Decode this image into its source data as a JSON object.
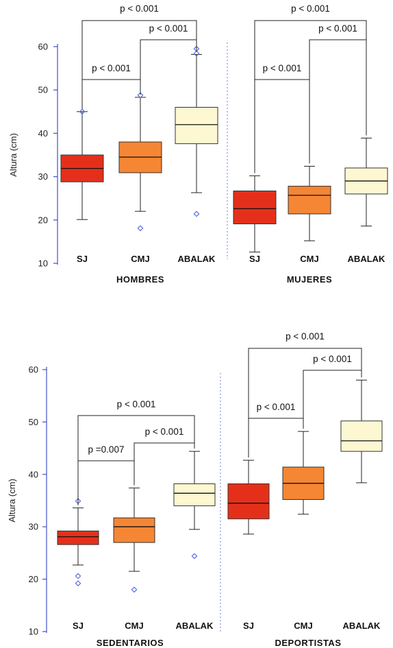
{
  "colors": {
    "SJ": "#e4301b",
    "CMJ": "#f58634",
    "ABALAK": "#fdf8d2",
    "outlier": "#5b6fe0",
    "axis": "#3f50c8",
    "separator": "#6b7fd8"
  },
  "chart_data": [
    {
      "type": "boxplot",
      "ylabel": "Altura (cm)",
      "ylim": [
        10,
        60
      ],
      "yticks": [
        10,
        20,
        30,
        40,
        50,
        60
      ],
      "tick_labels": [
        "10",
        "20",
        "30",
        "40",
        "50",
        "60"
      ],
      "grid": false,
      "groups": [
        {
          "label": "HOMBRES",
          "boxes": [
            {
              "category": "SJ",
              "whisker_low": 20.1,
              "q1": 28.8,
              "median": 31.9,
              "q3": 35.0,
              "whisker_high": 45.0,
              "outliers": [
                45.0
              ]
            },
            {
              "category": "CMJ",
              "whisker_low": 22.0,
              "q1": 30.9,
              "median": 34.5,
              "q3": 38.0,
              "whisker_high": 48.3,
              "outliers": [
                48.8,
                18.1
              ]
            },
            {
              "category": "ABALAK",
              "whisker_low": 26.3,
              "q1": 37.6,
              "median": 42.0,
              "q3": 46.0,
              "whisker_high": 58.2,
              "outliers": [
                58.4,
                59.5,
                21.4
              ]
            }
          ],
          "comparisons": [
            {
              "from": 0,
              "to": 1,
              "label": "p < 0.001",
              "tier": 0
            },
            {
              "from": 1,
              "to": 2,
              "label": "p < 0.001",
              "tier": 1
            },
            {
              "from": 0,
              "to": 2,
              "label": "p < 0.001",
              "tier": 2
            }
          ]
        },
        {
          "label": "MUJERES",
          "boxes": [
            {
              "category": "SJ",
              "whisker_low": 12.6,
              "q1": 19.1,
              "median": 22.6,
              "q3": 26.7,
              "whisker_high": 30.2,
              "outliers": []
            },
            {
              "category": "CMJ",
              "whisker_low": 15.2,
              "q1": 21.4,
              "median": 25.7,
              "q3": 27.8,
              "whisker_high": 32.4,
              "outliers": []
            },
            {
              "category": "ABALAK",
              "whisker_low": 18.6,
              "q1": 26.0,
              "median": 29.0,
              "q3": 32.0,
              "whisker_high": 38.9,
              "outliers": []
            }
          ],
          "comparisons": [
            {
              "from": 0,
              "to": 1,
              "label": "p < 0.001",
              "tier": 0
            },
            {
              "from": 1,
              "to": 2,
              "label": "p < 0.001",
              "tier": 1
            },
            {
              "from": 0,
              "to": 2,
              "label": "p < 0.001",
              "tier": 2
            }
          ]
        }
      ]
    },
    {
      "type": "boxplot",
      "ylabel": "Altura (cm)",
      "ylim": [
        10,
        60
      ],
      "yticks": [
        10,
        20,
        30,
        40,
        50,
        60
      ],
      "tick_labels": [
        "10",
        "20",
        "30",
        "40",
        "50",
        "60"
      ],
      "grid": false,
      "groups": [
        {
          "label": "SEDENTARIOS",
          "boxes": [
            {
              "category": "SJ",
              "whisker_low": 22.7,
              "q1": 26.6,
              "median": 28.1,
              "q3": 29.2,
              "whisker_high": 33.6,
              "outliers": [
                34.9,
                20.6,
                19.2
              ]
            },
            {
              "category": "CMJ",
              "whisker_low": 21.5,
              "q1": 27.0,
              "median": 30.0,
              "q3": 31.7,
              "whisker_high": 37.4,
              "outliers": [
                18.0
              ]
            },
            {
              "category": "ABALAK",
              "whisker_low": 29.5,
              "q1": 34.0,
              "median": 36.4,
              "q3": 38.2,
              "whisker_high": 44.4,
              "outliers": [
                24.4
              ]
            }
          ],
          "comparisons": [
            {
              "from": 0,
              "to": 1,
              "label": "p =0.007",
              "tier": 0
            },
            {
              "from": 1,
              "to": 2,
              "label": "p < 0.001",
              "tier": 1
            },
            {
              "from": 0,
              "to": 2,
              "label": "p < 0.001",
              "tier": 2
            }
          ]
        },
        {
          "label": "DEPORTISTAS",
          "boxes": [
            {
              "category": "SJ",
              "whisker_low": 28.6,
              "q1": 31.5,
              "median": 34.5,
              "q3": 38.2,
              "whisker_high": 42.7,
              "outliers": []
            },
            {
              "category": "CMJ",
              "whisker_low": 32.4,
              "q1": 35.2,
              "median": 38.3,
              "q3": 41.4,
              "whisker_high": 48.2,
              "outliers": []
            },
            {
              "category": "ABALAK",
              "whisker_low": 38.4,
              "q1": 44.4,
              "median": 46.4,
              "q3": 50.2,
              "whisker_high": 58.0,
              "outliers": []
            }
          ],
          "comparisons": [
            {
              "from": 0,
              "to": 1,
              "label": "p < 0.001",
              "tier": 0
            },
            {
              "from": 1,
              "to": 2,
              "label": "p < 0.001",
              "tier": 1
            },
            {
              "from": 0,
              "to": 2,
              "label": "p < 0.001",
              "tier": 2
            }
          ]
        }
      ]
    }
  ]
}
